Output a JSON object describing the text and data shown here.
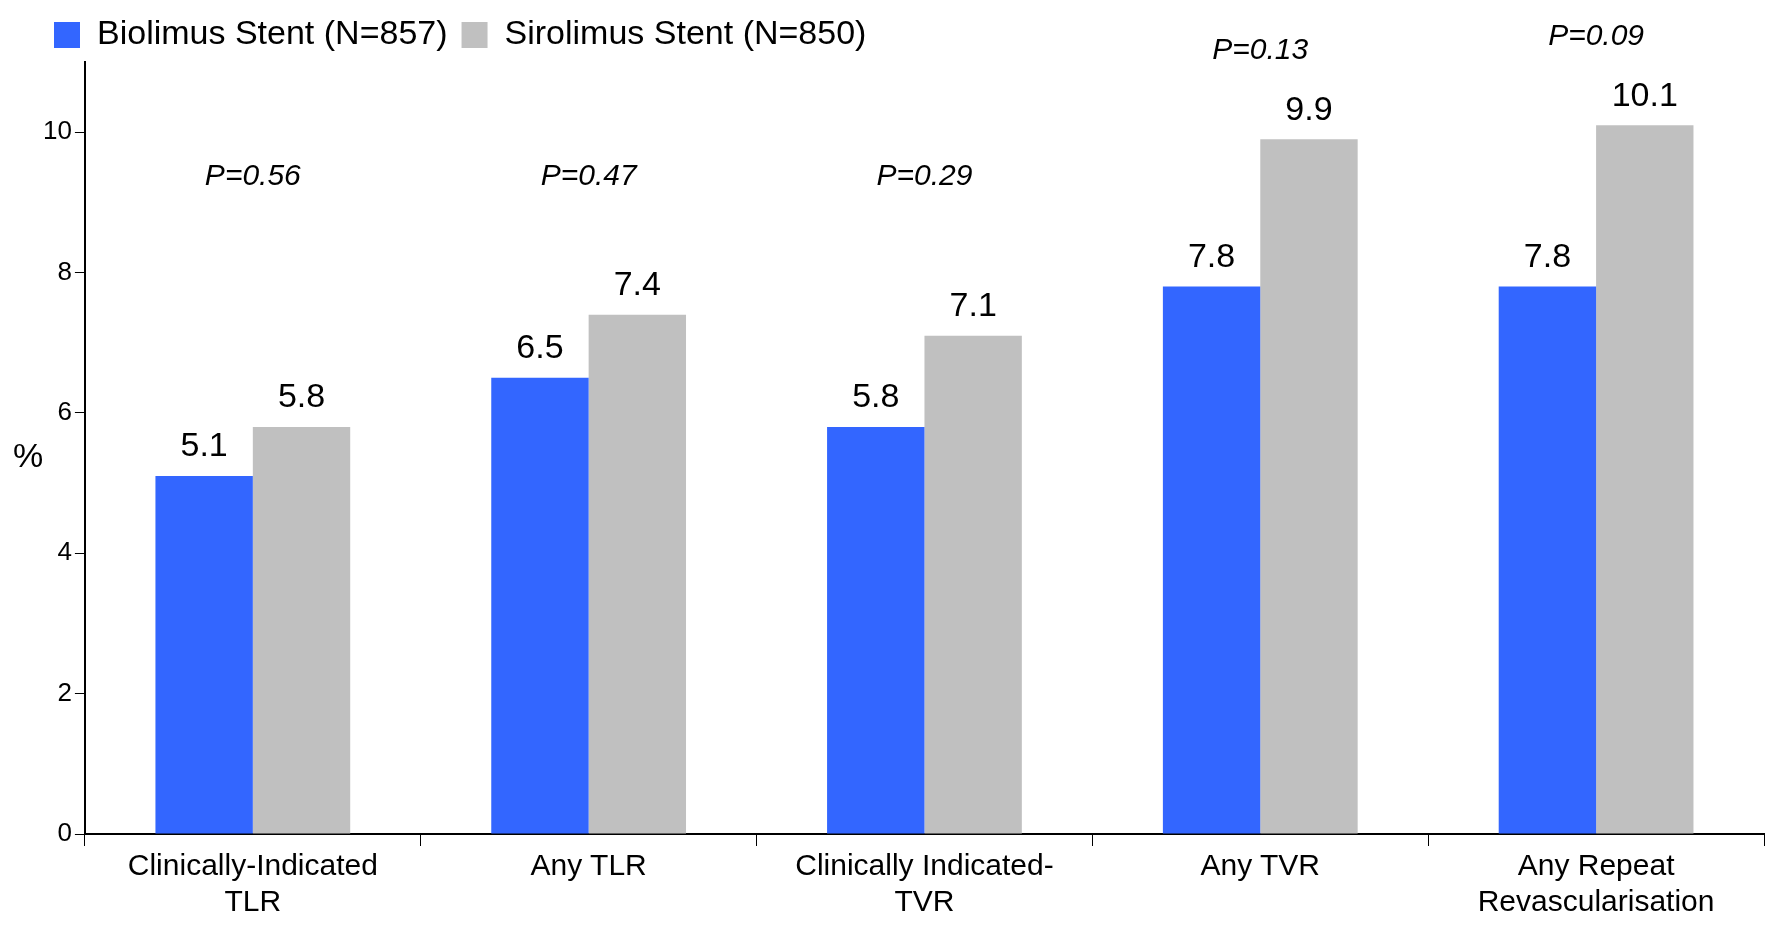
{
  "chart_data": {
    "type": "bar",
    "ylabel": "%",
    "categories": [
      "Clinically-Indicated TLR",
      "Any TLR",
      "Clinically Indicated-TVR",
      "Any TVR",
      "Any Repeat Revascularisation"
    ],
    "series": [
      {
        "name": "Biolimus Stent (N=857)",
        "color": "#3366ff",
        "values": [
          5.1,
          6.5,
          5.8,
          7.8,
          7.8
        ]
      },
      {
        "name": "Sirolimus Stent (N=850)",
        "color": "#c0c0c0",
        "values": [
          5.8,
          7.4,
          7.1,
          9.9,
          10.1
        ]
      }
    ],
    "ylim": [
      0,
      11
    ],
    "yticks": [
      0,
      2,
      4,
      6,
      8,
      10
    ],
    "grid": false,
    "legend": "top left",
    "data_labels": true,
    "annotations": [
      "P=0.56",
      "P=0.47",
      "P=0.29",
      "P=0.13",
      "P=0.09"
    ]
  }
}
